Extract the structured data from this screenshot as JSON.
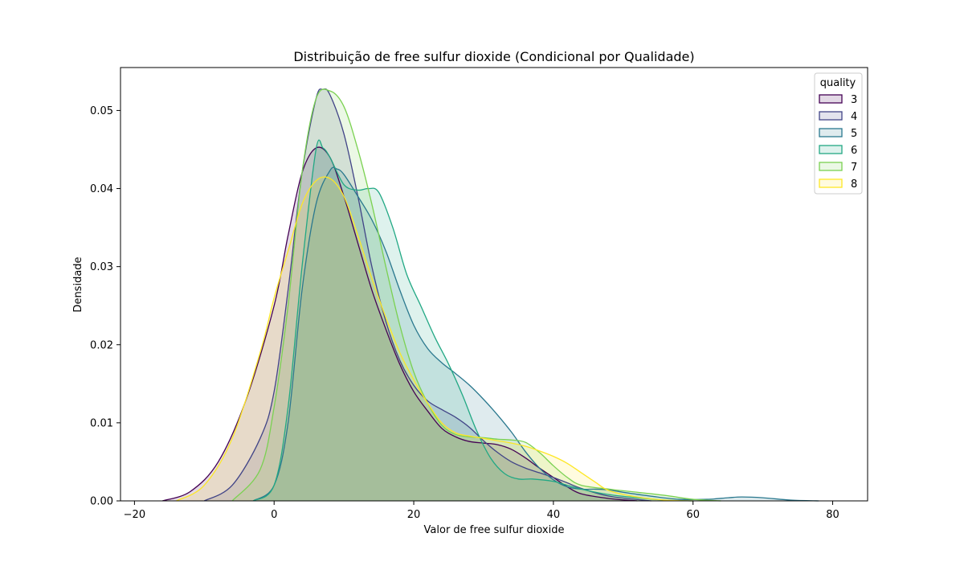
{
  "chart_data": {
    "type": "area",
    "title": "Distribuição de free sulfur dioxide (Condicional por Qualidade)",
    "xlabel": "Valor de free sulfur dioxide",
    "ylabel": "Densidade",
    "xlim": [
      -22,
      85
    ],
    "ylim": [
      0,
      0.0555
    ],
    "x_ticks": [
      -20,
      0,
      20,
      40,
      60,
      80
    ],
    "x_tick_labels": [
      "−20",
      "0",
      "20",
      "40",
      "60",
      "80"
    ],
    "y_ticks": [
      0,
      0.01,
      0.02,
      0.03,
      0.04,
      0.05
    ],
    "y_tick_labels": [
      "0.00",
      "0.01",
      "0.02",
      "0.03",
      "0.04",
      "0.05"
    ],
    "grid": false,
    "legend": {
      "title": "quality",
      "position": "top-right"
    },
    "series": [
      {
        "name": "3",
        "color": "#440154",
        "points": [
          [
            -16,
            0
          ],
          [
            -12,
            0.0012
          ],
          [
            -8,
            0.005
          ],
          [
            -4,
            0.013
          ],
          [
            0,
            0.025
          ],
          [
            2,
            0.034
          ],
          [
            4,
            0.042
          ],
          [
            6,
            0.0452
          ],
          [
            8,
            0.044
          ],
          [
            10,
            0.039
          ],
          [
            12,
            0.033
          ],
          [
            14,
            0.027
          ],
          [
            16,
            0.022
          ],
          [
            18,
            0.0175
          ],
          [
            20,
            0.014
          ],
          [
            22,
            0.0115
          ],
          [
            24,
            0.0093
          ],
          [
            26,
            0.0082
          ],
          [
            28,
            0.0076
          ],
          [
            30,
            0.0074
          ],
          [
            32,
            0.0072
          ],
          [
            34,
            0.0066
          ],
          [
            36,
            0.0055
          ],
          [
            38,
            0.0042
          ],
          [
            40,
            0.003
          ],
          [
            42,
            0.0018
          ],
          [
            44,
            0.0009
          ],
          [
            48,
            0.0003
          ],
          [
            52,
            0
          ]
        ]
      },
      {
        "name": "4",
        "color": "#414487",
        "points": [
          [
            -10,
            0
          ],
          [
            -6,
            0.002
          ],
          [
            -2,
            0.008
          ],
          [
            0,
            0.014
          ],
          [
            2,
            0.027
          ],
          [
            4,
            0.042
          ],
          [
            6,
            0.0515
          ],
          [
            7,
            0.0527
          ],
          [
            8,
            0.052
          ],
          [
            10,
            0.047
          ],
          [
            12,
            0.039
          ],
          [
            14,
            0.03
          ],
          [
            16,
            0.023
          ],
          [
            18,
            0.018
          ],
          [
            20,
            0.0148
          ],
          [
            22,
            0.0128
          ],
          [
            24,
            0.0117
          ],
          [
            26,
            0.0107
          ],
          [
            28,
            0.0094
          ],
          [
            30,
            0.0077
          ],
          [
            32,
            0.0062
          ],
          [
            34,
            0.005
          ],
          [
            36,
            0.0042
          ],
          [
            38,
            0.0036
          ],
          [
            40,
            0.003
          ],
          [
            42,
            0.0023
          ],
          [
            44,
            0.0016
          ],
          [
            48,
            0.0006
          ],
          [
            54,
            0
          ]
        ]
      },
      {
        "name": "5",
        "color": "#2a788e",
        "points": [
          [
            -3,
            0
          ],
          [
            0,
            0.002
          ],
          [
            2,
            0.01
          ],
          [
            4,
            0.027
          ],
          [
            6,
            0.038
          ],
          [
            8,
            0.0423
          ],
          [
            9,
            0.0425
          ],
          [
            10,
            0.0418
          ],
          [
            12,
            0.039
          ],
          [
            14,
            0.036
          ],
          [
            16,
            0.032
          ],
          [
            18,
            0.027
          ],
          [
            20,
            0.0225
          ],
          [
            22,
            0.0195
          ],
          [
            24,
            0.0177
          ],
          [
            26,
            0.0163
          ],
          [
            28,
            0.0148
          ],
          [
            30,
            0.013
          ],
          [
            32,
            0.011
          ],
          [
            34,
            0.0088
          ],
          [
            36,
            0.0063
          ],
          [
            38,
            0.0042
          ],
          [
            40,
            0.0027
          ],
          [
            42,
            0.0018
          ],
          [
            44,
            0.0015
          ],
          [
            46,
            0.0015
          ],
          [
            48,
            0.0014
          ],
          [
            50,
            0.0011
          ],
          [
            54,
            0.0006
          ],
          [
            58,
            0.0002
          ],
          [
            62,
            0.0002
          ],
          [
            65,
            0.0004
          ],
          [
            67,
            0.0005
          ],
          [
            70,
            0.0004
          ],
          [
            74,
            0.0001
          ],
          [
            78,
            0
          ]
        ]
      },
      {
        "name": "6",
        "color": "#22a884",
        "points": [
          [
            -3,
            0
          ],
          [
            0,
            0.002
          ],
          [
            2,
            0.012
          ],
          [
            4,
            0.03
          ],
          [
            6,
            0.045
          ],
          [
            7,
            0.0452
          ],
          [
            8,
            0.044
          ],
          [
            10,
            0.0405
          ],
          [
            12,
            0.0398
          ],
          [
            13.5,
            0.04
          ],
          [
            15,
            0.0395
          ],
          [
            17,
            0.035
          ],
          [
            19,
            0.029
          ],
          [
            21,
            0.025
          ],
          [
            23,
            0.021
          ],
          [
            25,
            0.0175
          ],
          [
            27,
            0.0135
          ],
          [
            29,
            0.009
          ],
          [
            31,
            0.0055
          ],
          [
            33,
            0.0035
          ],
          [
            35,
            0.0028
          ],
          [
            37,
            0.0028
          ],
          [
            40,
            0.0025
          ],
          [
            42,
            0.002
          ],
          [
            45,
            0.0013
          ],
          [
            48,
            0.0008
          ],
          [
            52,
            0.0004
          ],
          [
            56,
            0.0001
          ],
          [
            60,
            0
          ]
        ]
      },
      {
        "name": "7",
        "color": "#7ad151",
        "points": [
          [
            -6,
            0
          ],
          [
            -2,
            0.004
          ],
          [
            0,
            0.012
          ],
          [
            2,
            0.025
          ],
          [
            4,
            0.042
          ],
          [
            6,
            0.0515
          ],
          [
            8,
            0.0525
          ],
          [
            10,
            0.0505
          ],
          [
            12,
            0.045
          ],
          [
            14,
            0.038
          ],
          [
            16,
            0.03
          ],
          [
            18,
            0.0225
          ],
          [
            20,
            0.0165
          ],
          [
            22,
            0.0125
          ],
          [
            24,
            0.0097
          ],
          [
            26,
            0.0085
          ],
          [
            28,
            0.0082
          ],
          [
            30,
            0.0081
          ],
          [
            32,
            0.0079
          ],
          [
            34,
            0.0078
          ],
          [
            36,
            0.0075
          ],
          [
            38,
            0.0062
          ],
          [
            40,
            0.0045
          ],
          [
            42,
            0.003
          ],
          [
            44,
            0.002
          ],
          [
            48,
            0.0015
          ],
          [
            52,
            0.0011
          ],
          [
            56,
            0.0007
          ],
          [
            60,
            0.0002
          ],
          [
            64,
            0
          ]
        ]
      },
      {
        "name": "8",
        "color": "#fde725",
        "points": [
          [
            -14,
            0
          ],
          [
            -10,
            0.002
          ],
          [
            -6,
            0.008
          ],
          [
            -2,
            0.019
          ],
          [
            0,
            0.026
          ],
          [
            2,
            0.032
          ],
          [
            4,
            0.038
          ],
          [
            6,
            0.041
          ],
          [
            8,
            0.0413
          ],
          [
            10,
            0.039
          ],
          [
            12,
            0.034
          ],
          [
            14,
            0.0285
          ],
          [
            16,
            0.0235
          ],
          [
            18,
            0.019
          ],
          [
            20,
            0.0155
          ],
          [
            22,
            0.0125
          ],
          [
            24,
            0.01
          ],
          [
            26,
            0.0087
          ],
          [
            28,
            0.0083
          ],
          [
            30,
            0.008
          ],
          [
            32,
            0.0077
          ],
          [
            34,
            0.0074
          ],
          [
            36,
            0.007
          ],
          [
            38,
            0.0064
          ],
          [
            40,
            0.0057
          ],
          [
            42,
            0.0048
          ],
          [
            44,
            0.0036
          ],
          [
            46,
            0.0024
          ],
          [
            48,
            0.0013
          ],
          [
            52,
            0.0005
          ],
          [
            56,
            0.0001
          ],
          [
            60,
            0
          ]
        ]
      }
    ]
  }
}
